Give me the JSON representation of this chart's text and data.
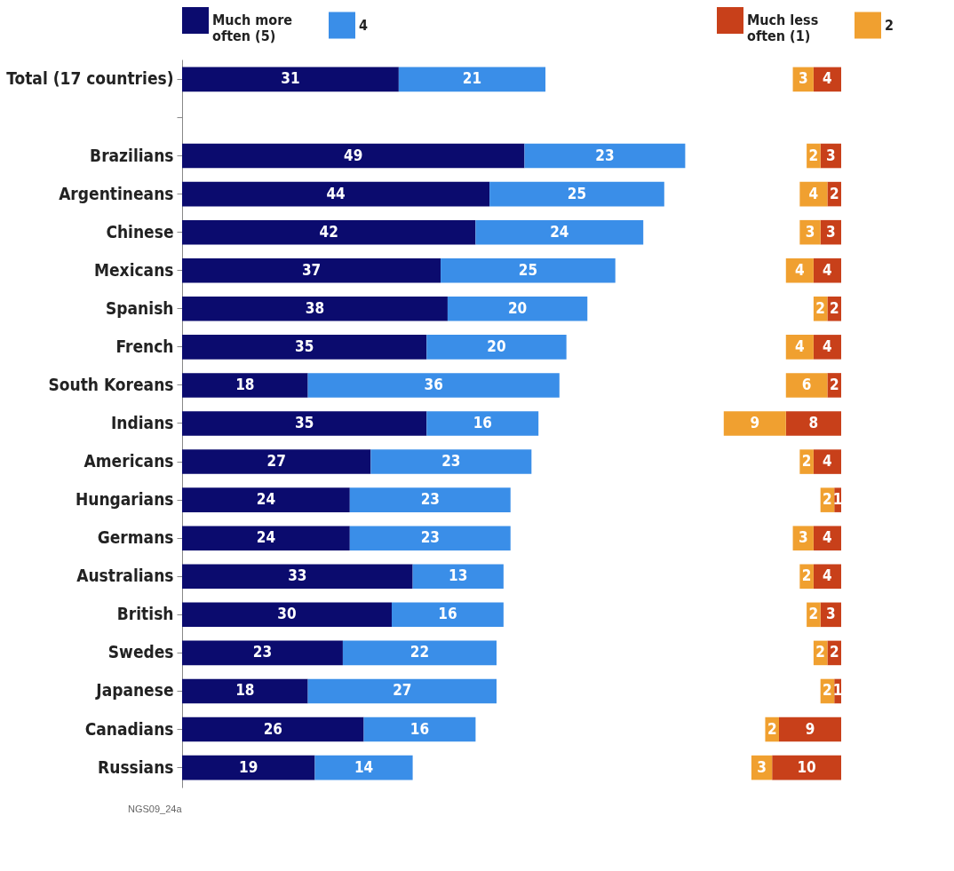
{
  "chart_data": [
    {
      "type": "bar",
      "orientation": "horizontal",
      "stacked": true,
      "data_labels": true,
      "tick_labels": "y",
      "legend": "top",
      "xlim": [
        0,
        75
      ],
      "categories": [
        "Total (17 countries)",
        null,
        "Brazilians",
        "Argentineans",
        "Chinese",
        "Mexicans",
        "Spanish",
        "French",
        "South Koreans",
        "Indians",
        "Americans",
        "Hungarians",
        "Germans",
        "Australians",
        "British",
        "Swedes",
        "Japanese",
        "Canadians",
        "Russians"
      ],
      "series": [
        {
          "name": "Much more often (5)",
          "color": "#0b0b6e",
          "values": [
            31,
            null,
            49,
            44,
            42,
            37,
            38,
            35,
            18,
            35,
            27,
            24,
            24,
            33,
            30,
            23,
            18,
            26,
            19
          ]
        },
        {
          "name": "4",
          "color": "#3a8ee8",
          "values": [
            21,
            null,
            23,
            25,
            24,
            25,
            20,
            20,
            36,
            16,
            23,
            23,
            23,
            13,
            16,
            22,
            27,
            16,
            14
          ]
        }
      ],
      "annotations": [
        "NGS09_24a"
      ]
    },
    {
      "type": "bar",
      "orientation": "horizontal",
      "stacked": true,
      "data_labels": true,
      "tick_labels": false,
      "legend": "top",
      "xlim": [
        18,
        0
      ],
      "categories": [
        null,
        null,
        null,
        null,
        null,
        null,
        null,
        null,
        null,
        null,
        null,
        null,
        null,
        null,
        null,
        null,
        null,
        null,
        null
      ],
      "series": [
        {
          "name": "Much less often (1)",
          "color": "#c8401a",
          "values": [
            4,
            null,
            3,
            2,
            3,
            4,
            2,
            4,
            2,
            8,
            4,
            1,
            4,
            4,
            3,
            2,
            1,
            9,
            10
          ]
        },
        {
          "name": "2",
          "color": "#f0a030",
          "values": [
            3,
            null,
            2,
            4,
            3,
            4,
            2,
            4,
            6,
            9,
            2,
            2,
            3,
            2,
            2,
            2,
            2,
            2,
            3
          ]
        }
      ]
    }
  ]
}
